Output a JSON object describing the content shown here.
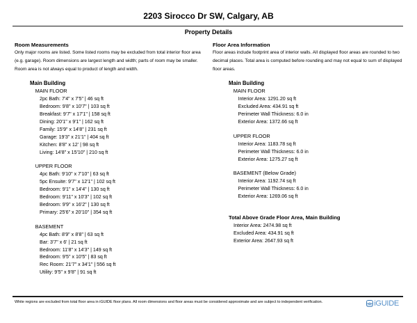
{
  "page": {
    "title": "2203 Sirocco Dr SW, Calgary, AB",
    "subtitle": "Property Details"
  },
  "room_measurements": {
    "heading": "Room Measurements",
    "description": "Only major rooms are listed. Some listed rooms may be excluded from total interior floor area (e.g. garage). Room dimensions are largest length and width; parts of room may be smaller. Room area is not always equal to product of length and width.",
    "building_name": "Main Building",
    "floors": [
      {
        "name": "MAIN FLOOR",
        "rooms": [
          "2pc Bath: 7'4\" x 7'5\" | 46 sq ft",
          "Bedroom: 9'8\" x 10'7\" | 103 sq ft",
          "Breakfast: 9'7\" x 17'1\" | 158 sq ft",
          "Dining: 20'1\" x 9'1\" | 162 sq ft",
          "Family: 15'9\" x 14'8\" | 231 sq ft",
          "Garage: 19'3\" x 21'1\" | 404 sq ft",
          "Kitchen: 8'8\" x 12' | 98 sq ft",
          "Living: 14'8\" x 15'10\" | 210 sq ft"
        ]
      },
      {
        "name": "UPPER FLOOR",
        "rooms": [
          "4pc Bath: 9'10\" x 7'10\" | 63 sq ft",
          "5pc Ensuite: 9'7\" x 12'1\" | 102 sq ft",
          "Bedroom: 9'1\" x 14'4\" | 130 sq ft",
          "Bedroom: 9'11\" x 10'3\" | 102 sq ft",
          "Bedroom: 9'9\" x 16'2\" | 130 sq ft",
          "Primary: 25'6\" x 20'10\" | 354 sq ft"
        ]
      },
      {
        "name": "BASEMENT",
        "rooms": [
          "4pc Bath: 8'9\" x 8'8\" | 63 sq ft",
          "Bar: 3'7\" x 6' | 21 sq ft",
          "Bedroom: 11'8\" x 14'3\" | 149 sq ft",
          "Bedroom: 9'5\" x 10'5\" | 83 sq ft",
          "Rec Room: 21'7\" x 34'1\" | 556 sq ft",
          "Utility: 9'5\" x 9'8\" | 91 sq ft"
        ]
      }
    ]
  },
  "floor_area_information": {
    "heading": "Floor Area Information",
    "description": "Floor areas include footprint area of interior walls. All displayed floor areas are rounded to two decimal places. Total area is computed before rounding and may not equal to sum of displayed floor areas.",
    "building_name": "Main Building",
    "floors": [
      {
        "name": "MAIN FLOOR",
        "areas": [
          "Interior Area: 1291.20 sq ft",
          "Excluded Area: 434.91 sq ft",
          "Perimeter Wall Thickness: 6.0 in",
          "Exterior Area: 1372.66 sq ft"
        ]
      },
      {
        "name": "UPPER FLOOR",
        "areas": [
          "Interior Area: 1183.78 sq ft",
          "Perimeter Wall Thickness: 6.0 in",
          "Exterior Area: 1275.27 sq ft"
        ]
      },
      {
        "name": "BASEMENT (Below Grade)",
        "areas": [
          "Interior Area: 1192.74 sq ft",
          "Perimeter Wall Thickness: 6.0 in",
          "Exterior Area: 1269.06 sq ft"
        ]
      }
    ],
    "total": {
      "heading": "Total Above Grade Floor Area, Main Building",
      "areas": [
        "Interior Area: 2474.98 sq ft",
        "Excluded Area: 434.91 sq ft",
        "Exterior Area: 2647.93 sq ft"
      ]
    }
  },
  "footer": {
    "disclaimer": "White regions are excluded from total floor area in iGUIDE floor plans. All room dimensions and floor areas must be considered approximate and are subject to independent verification.",
    "brand": "iGUIDE",
    "colors": {
      "logo_blue": "#5590c9",
      "icon_border": "#3c79b4",
      "icon_fill": "#d7e7f6",
      "rule": "#1c1c1c"
    }
  }
}
